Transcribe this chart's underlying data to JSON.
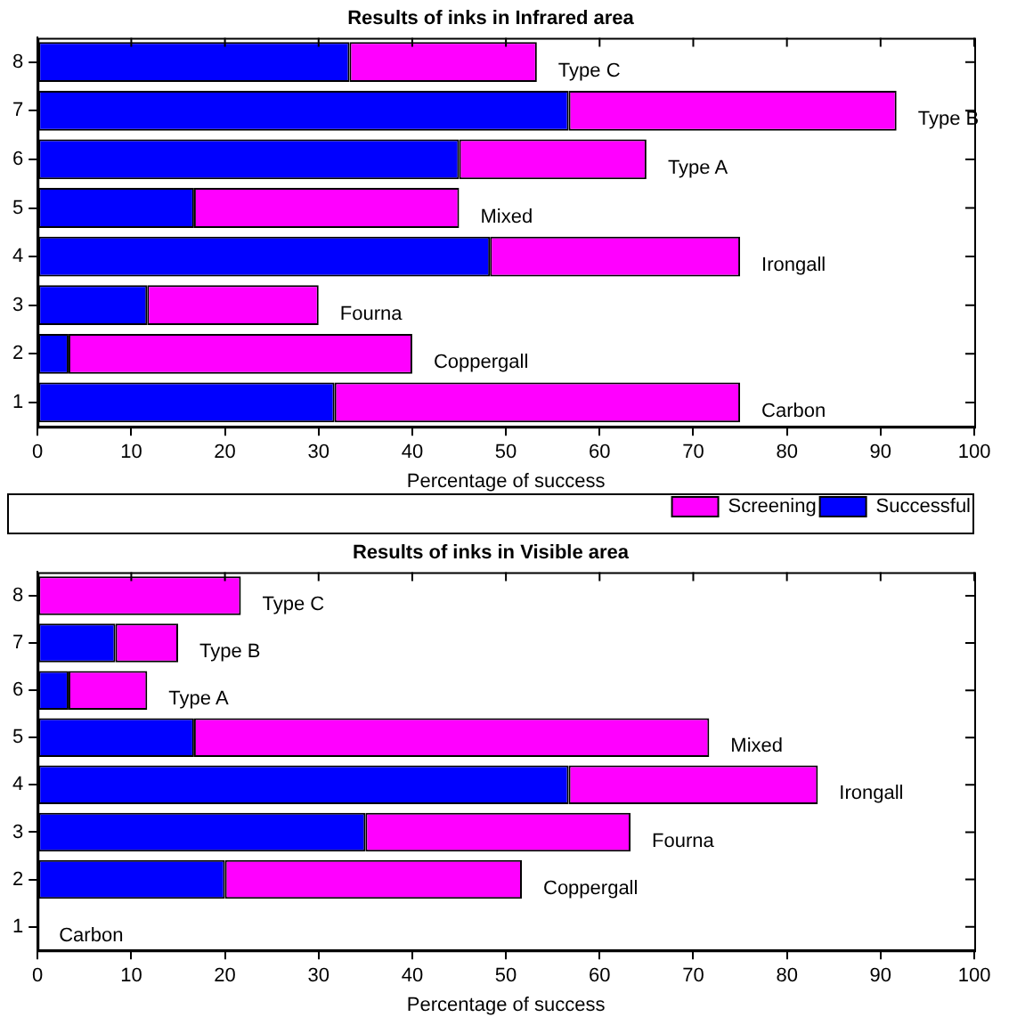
{
  "chart_data": [
    {
      "type": "bar",
      "orientation": "horizontal",
      "stacked": true,
      "title": "Results of inks in Infrared area",
      "xlabel": "Percentage of success",
      "categories": [
        "8",
        "7",
        "6",
        "5",
        "4",
        "3",
        "2",
        "1"
      ],
      "series": [
        {
          "name": "Successful",
          "color": "#0000ff",
          "values": [
            33.3,
            56.7,
            45,
            16.7,
            48.3,
            11.7,
            3.3,
            31.7
          ]
        },
        {
          "name": "Screening",
          "color": "#ff00ff",
          "values": [
            20,
            35,
            20,
            28.3,
            26.7,
            18.3,
            36.7,
            43.3
          ]
        }
      ],
      "xlim": [
        0,
        100
      ],
      "xticks": [
        0,
        10,
        20,
        30,
        40,
        50,
        60,
        70,
        80,
        90,
        100
      ],
      "grid": false,
      "legend": "bottom right",
      "annotations": [
        "Type C",
        "Type B",
        "Type A",
        "Mixed",
        "Irongall",
        "Fourna",
        "Coppergall",
        "Carbon"
      ]
    },
    {
      "type": "bar",
      "orientation": "horizontal",
      "stacked": true,
      "title": "Results of inks in Visible area",
      "xlabel": "Percentage of success",
      "categories": [
        "8",
        "7",
        "6",
        "5",
        "4",
        "3",
        "2",
        "1"
      ],
      "series": [
        {
          "color": "#0000ff",
          "values": [
            0,
            8.3,
            3.3,
            16.7,
            56.7,
            35,
            20,
            0
          ]
        },
        {
          "color": "#ff00ff",
          "values": [
            21.7,
            6.7,
            8.4,
            55,
            26.6,
            28.3,
            31.7,
            0
          ]
        }
      ],
      "xlim": [
        0,
        100
      ],
      "xticks": [
        0,
        10,
        20,
        30,
        40,
        50,
        60,
        70,
        80,
        90,
        100
      ],
      "grid": false,
      "legend": false,
      "annotations": [
        "Type C",
        "Type B",
        "Type A",
        "Mixed",
        "Irongall",
        "Fourna",
        "Coppergall",
        "Carbon"
      ]
    }
  ]
}
